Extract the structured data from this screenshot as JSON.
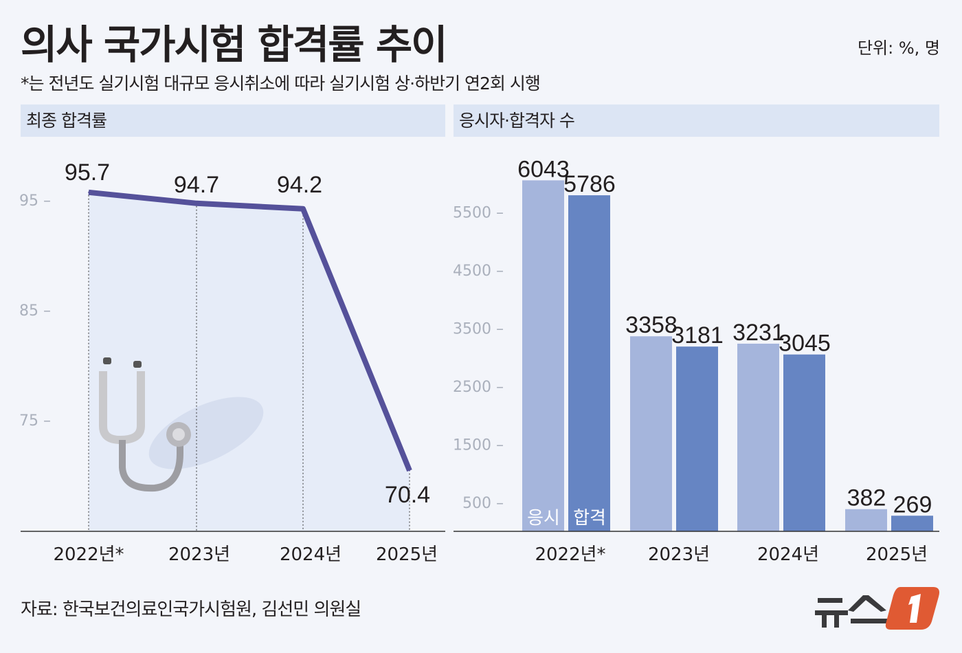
{
  "title": "의사 국가시험 합격률 추이",
  "unit": "단위: %, 명",
  "note": "*는 전년도 실기시험 대규모 응시취소에 따라 실기시험 상·하반기 연2회 시행",
  "source": "자료: 한국보건의료인국가시험원, 김선민 의원실",
  "logo": {
    "text": "뉴스1"
  },
  "colors": {
    "line": "#55519a",
    "area": "#e6ecf8",
    "applicants": "#a5b5dc",
    "passers": "#6685c3",
    "header": "#dce5f4"
  },
  "icons": {
    "illustration": "stethoscope-icon"
  },
  "chart_data": [
    {
      "type": "line",
      "title": "최종 합격률",
      "categories": [
        "2022년*",
        "2023년",
        "2024년",
        "2025년"
      ],
      "values": [
        95.7,
        94.7,
        94.2,
        70.4
      ],
      "value_labels": [
        "95.7",
        "94.7",
        "94.2",
        "70.4"
      ],
      "yticks": [
        95,
        85,
        75
      ],
      "ytick_labels": [
        "95 –",
        "85 –",
        "75 –"
      ],
      "ylim": [
        68,
        97
      ],
      "grid": false
    },
    {
      "type": "bar",
      "title": "응시자·합격자 수",
      "categories": [
        "2022년*",
        "2023년",
        "2024년",
        "2025년"
      ],
      "series": [
        {
          "name": "응시",
          "values": [
            6043,
            3358,
            3231,
            382
          ]
        },
        {
          "name": "합격",
          "values": [
            5786,
            3181,
            3045,
            269
          ]
        }
      ],
      "yticks": [
        5500,
        4500,
        3500,
        2500,
        1500,
        500
      ],
      "ytick_labels": [
        "5500 –",
        "4500 –",
        "3500 –",
        "2500 –",
        "1500 –",
        "500 –"
      ],
      "ylim": [
        0,
        6500
      ],
      "grid": false
    }
  ]
}
